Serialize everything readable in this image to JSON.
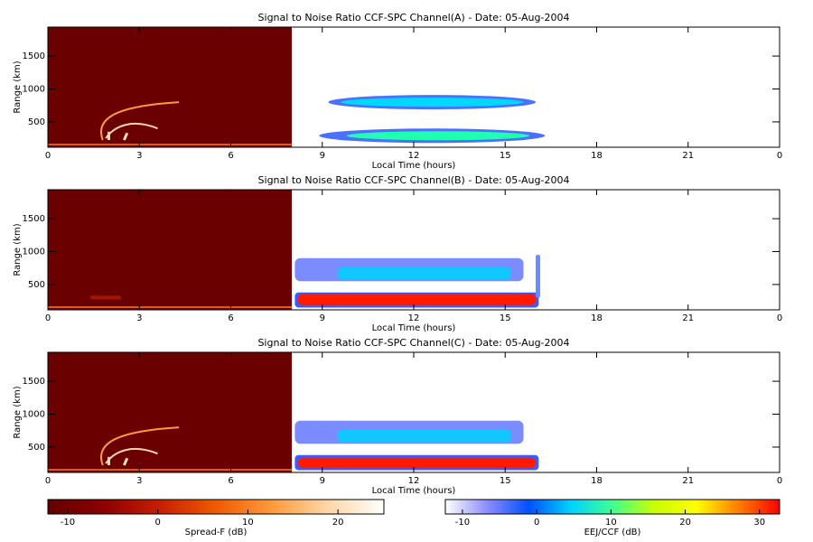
{
  "chart_data": [
    {
      "type": "heatmap",
      "title": "Signal to Noise Ratio CCF-SPC Channel(A) - Date: 05-Aug-2004",
      "x_label": "Local Time (hours)",
      "y_label": "Range (km)",
      "xlim": [
        0,
        24
      ],
      "xticks": [
        0,
        3,
        6,
        9,
        12,
        15,
        18,
        21,
        {
          "value": 24,
          "label": "0"
        }
      ],
      "ylim": [
        115,
        1940
      ],
      "yticks": [
        500,
        1000,
        1500
      ]
    },
    {
      "type": "heatmap",
      "title": "Signal to Noise Ratio CCF-SPC Channel(B) - Date: 05-Aug-2004",
      "x_label": "Local Time (hours)",
      "y_label": "Range (km)",
      "xlim": [
        0,
        24
      ],
      "xticks": [
        0,
        3,
        6,
        9,
        12,
        15,
        18,
        21,
        {
          "value": 24,
          "label": "0"
        }
      ],
      "ylim": [
        115,
        1940
      ],
      "yticks": [
        500,
        1000,
        1500
      ]
    },
    {
      "type": "heatmap",
      "title": "Signal to Noise Ratio CCF-SPC Channel(C) - Date: 05-Aug-2004",
      "x_label": "Local Time (hours)",
      "y_label": "Range (km)",
      "xlim": [
        0,
        24
      ],
      "xticks": [
        0,
        3,
        6,
        9,
        12,
        15,
        18,
        21,
        {
          "value": 24,
          "label": "0"
        }
      ],
      "ylim": [
        115,
        1940
      ],
      "yticks": [
        500,
        1000,
        1500
      ]
    },
    {
      "type": "colorbar",
      "x_label": "Spread-F (dB)",
      "xlim": [
        -12.2,
        25.1
      ],
      "xticks": [
        -10,
        0,
        10,
        20
      ],
      "colors": [
        "#640000",
        "#8c0000",
        "#c81e00",
        "#f05a00",
        "#ff9a3c",
        "#ffd7a8",
        "#ffffff"
      ]
    },
    {
      "type": "colorbar",
      "x_label": "EEJ/CCF (dB)",
      "xlim": [
        -12.3,
        32.7
      ],
      "xticks": [
        -10,
        0,
        10,
        20,
        30
      ],
      "colors": [
        "#ffffff",
        "#8c8cff",
        "#0050ff",
        "#00d2ff",
        "#40ff90",
        "#c8ff00",
        "#ffff00",
        "#ff8000",
        "#ff0000"
      ]
    }
  ]
}
